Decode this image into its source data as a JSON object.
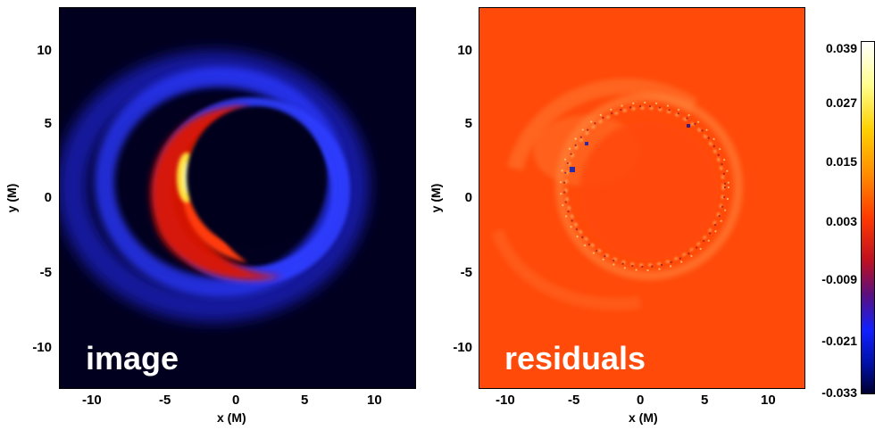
{
  "left_panel": {
    "label": "image",
    "xlabel": "x (M)",
    "ylabel": "y (M)",
    "x_ticks": [
      "-10",
      "-5",
      "0",
      "5",
      "10"
    ],
    "y_ticks": [
      "10",
      "5",
      "0",
      "-5",
      "-10"
    ]
  },
  "right_panel": {
    "label": "residuals",
    "xlabel": "x (M)",
    "ylabel": "y (M)",
    "x_ticks": [
      "-10",
      "-5",
      "0",
      "5",
      "10"
    ],
    "y_ticks": [
      "10",
      "5",
      "0",
      "-5",
      "-10"
    ]
  },
  "colorbar": {
    "labels": [
      "0.039",
      "0.027",
      "0.015",
      "0.003",
      "-0.009",
      "-0.021",
      "-0.033"
    ]
  },
  "colors": {
    "background_dark": "#02001f",
    "residual_bg": "#ff4a0a",
    "blue": "#1a2cff",
    "red": "#ff2a00",
    "yellow": "#ffff66"
  }
}
